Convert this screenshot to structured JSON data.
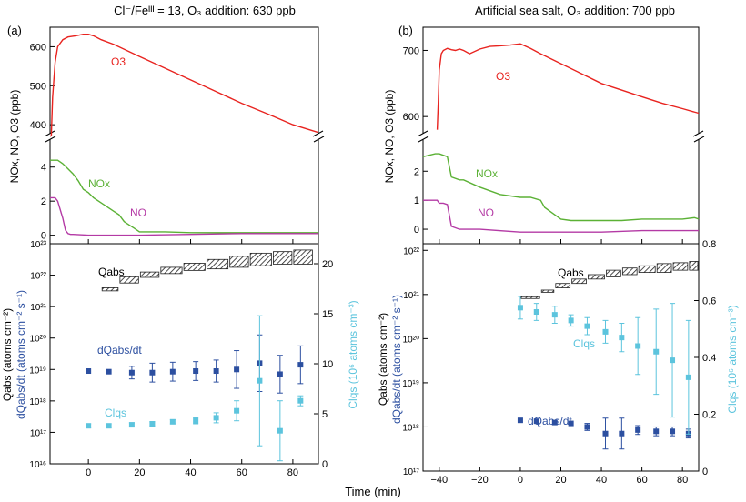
{
  "colors": {
    "o3": "#e8231f",
    "nox": "#5bb135",
    "no": "#b43aa5",
    "dq": "#2c4fa0",
    "cl": "#5cc4dd",
    "hatch": "#222222"
  },
  "x_axis_label": "Time (min)",
  "panels": [
    {
      "id": "a",
      "label": "(a)",
      "title": "Cl⁻/Feᴵᴵᴵ = 13, O₃ addition: 630 ppb",
      "ylabel_top": "NOx, NO, O3 (ppb)",
      "ylabel_left_1": "Qabs (atoms cm⁻²)",
      "ylabel_left_2": "dQabs/dt (atoms cm⁻² s⁻¹)",
      "ylabel_right": "Clqs (10⁶ atoms cm⁻³)",
      "xticks": [
        "0",
        "20",
        "40",
        "60",
        "80"
      ],
      "o3_yticks": [
        "400",
        "500",
        "600"
      ],
      "nox_yticks": [
        "0",
        "2",
        "4"
      ],
      "left_yticks": [
        "10¹⁶",
        "10¹⁷",
        "10¹⁸",
        "10¹⁹",
        "10²⁰",
        "10²¹",
        "10²²",
        "10²³"
      ],
      "right_yticks": [
        "0",
        "5",
        "10",
        "15",
        "20"
      ],
      "labels": {
        "o3": "O3",
        "nox": "NOx",
        "no": "NO",
        "qabs": "Qabs",
        "dq": "dQabs/dt",
        "cl": "Clqs"
      }
    },
    {
      "id": "b",
      "label": "(b)",
      "title": "Artificial sea salt, O₃ addition: 700 ppb",
      "ylabel_top": "NOx, NO, O3 (ppb)",
      "ylabel_left_1": "Qabs (atoms cm⁻²)",
      "ylabel_left_2": "dQabs/dt (atoms cm⁻² s⁻¹)",
      "ylabel_right": "Clqs (10⁶ atoms cm⁻³)",
      "xticks": [
        "−40",
        "−20",
        "0",
        "20",
        "40",
        "60",
        "80"
      ],
      "o3_yticks": [
        "600",
        "700"
      ],
      "nox_yticks": [
        "0",
        "1",
        "2"
      ],
      "left_yticks": [
        "10¹⁷",
        "10¹⁸",
        "10¹⁹",
        "10²⁰",
        "10²¹",
        "10²²"
      ],
      "right_yticks": [
        "0",
        "0.2",
        "0.4",
        "0.6",
        "0.8"
      ],
      "labels": {
        "o3": "O3",
        "nox": "NOx",
        "no": "NO",
        "qabs": "Qabs",
        "dq": "dQabs/dt",
        "cl": "Clqs"
      }
    }
  ],
  "chart_data": [
    {
      "type": "line",
      "panel": "a",
      "title": "Cl⁻/Feᴵᴵᴵ = 13, O₃ addition: 630 ppb",
      "xlabel": "Time (min)",
      "ylabel": "NOx, NO, O3 (ppb)",
      "xlim": [
        -15,
        90
      ],
      "o3_ylim": [
        370,
        650
      ],
      "nox_ylim": [
        -0.5,
        5.8
      ],
      "series": [
        {
          "name": "O3",
          "x": [
            -15,
            -14.5,
            -14,
            -13,
            -12,
            -10,
            -8,
            -5,
            -2,
            0,
            2,
            5,
            10,
            20,
            30,
            40,
            50,
            60,
            70,
            80,
            90
          ],
          "y": [
            370,
            372,
            470,
            560,
            600,
            618,
            625,
            628,
            632,
            632,
            628,
            618,
            606,
            575,
            545,
            515,
            485,
            455,
            428,
            400,
            380
          ]
        },
        {
          "name": "NOx",
          "x": [
            -15,
            -12,
            -11,
            -10,
            -8,
            -6,
            -4,
            -2,
            0,
            2,
            4,
            6,
            8,
            10,
            12,
            14,
            16,
            18,
            20,
            30,
            40,
            60,
            90
          ],
          "y": [
            4.4,
            4.4,
            4.3,
            4.2,
            3.9,
            3.6,
            3.2,
            2.7,
            2.5,
            2.2,
            2.0,
            1.8,
            1.6,
            1.4,
            1.2,
            0.8,
            0.6,
            0.4,
            0.2,
            0.2,
            0.15,
            0.15,
            0.15
          ]
        },
        {
          "name": "NO",
          "x": [
            -15,
            -13,
            -12,
            -10,
            -9,
            -8,
            -7,
            -6,
            0,
            10,
            20,
            40,
            60,
            90
          ],
          "y": [
            2.2,
            2.2,
            2.0,
            1.0,
            0.3,
            0.1,
            0.05,
            0.05,
            0.0,
            0.0,
            0.0,
            0.05,
            0.1,
            0.1
          ]
        }
      ]
    },
    {
      "type": "scatter",
      "panel": "a",
      "xlabel": "Time (min)",
      "ylabel": "Qabs (atoms cm⁻²), dQabs/dt (atoms cm⁻² s⁻¹)",
      "y2label": "Clqs (10⁶ atoms cm⁻³)",
      "xlim": [
        -15,
        90
      ],
      "ylim_log10": [
        16,
        23
      ],
      "y2lim": [
        0,
        22
      ],
      "series": [
        {
          "name": "dQabs/dt",
          "x": [
            0,
            8,
            17,
            25,
            33,
            42,
            50,
            58,
            67,
            75,
            83
          ],
          "log10_y": [
            18.95,
            18.93,
            18.9,
            18.9,
            18.93,
            18.95,
            18.95,
            19.0,
            19.2,
            18.85,
            19.15
          ],
          "err_log10": [
            0,
            0,
            0.2,
            0.3,
            0.3,
            0.3,
            0.35,
            0.6,
            0.9,
            0.6,
            0.6
          ]
        },
        {
          "name": "Clqs",
          "x": [
            0,
            8,
            17,
            25,
            33,
            42,
            50,
            58,
            67,
            75,
            83
          ],
          "y": [
            3.8,
            3.8,
            3.9,
            4.0,
            4.2,
            4.3,
            4.6,
            5.3,
            8.3,
            3.3,
            6.3
          ],
          "err": [
            0.2,
            0.2,
            0.2,
            0.2,
            0.2,
            0.3,
            0.5,
            1.0,
            6.5,
            3.0,
            0.5
          ]
        },
        {
          "name": "Qabs",
          "x": [
            [
              5,
              12
            ],
            [
              12,
              20
            ],
            [
              20,
              28
            ],
            [
              28,
              37
            ],
            [
              37,
              46
            ],
            [
              46,
              55
            ],
            [
              55,
              63
            ],
            [
              63,
              72
            ],
            [
              72,
              80
            ],
            [
              80,
              88
            ]
          ],
          "log10_low": [
            21.5,
            21.75,
            21.93,
            22.05,
            22.15,
            22.2,
            22.25,
            22.3,
            22.35,
            22.35
          ],
          "log10_high": [
            21.6,
            21.95,
            22.1,
            22.25,
            22.38,
            22.5,
            22.6,
            22.7,
            22.75,
            22.8
          ]
        }
      ]
    },
    {
      "type": "line",
      "panel": "b",
      "title": "Artificial sea salt, O₃ addition: 700 ppb",
      "xlabel": "Time (min)",
      "ylabel": "NOx, NO, O3 (ppb)",
      "xlim": [
        -48,
        88
      ],
      "o3_ylim": [
        570,
        735
      ],
      "nox_ylim": [
        -0.5,
        3.2
      ],
      "series": [
        {
          "name": "O3",
          "x": [
            -41,
            -40.5,
            -40,
            -39,
            -38,
            -36,
            -34,
            -32,
            -30,
            -28,
            -25,
            -20,
            -15,
            -10,
            -5,
            0,
            5,
            10,
            20,
            30,
            40,
            50,
            60,
            70,
            80,
            88
          ],
          "y": [
            580,
            620,
            670,
            695,
            700,
            703,
            701,
            700,
            702,
            700,
            695,
            702,
            706,
            707,
            708,
            710,
            703,
            695,
            680,
            665,
            650,
            640,
            630,
            620,
            612,
            605
          ]
        },
        {
          "name": "NOx",
          "x": [
            -48,
            -42,
            -41,
            -40,
            -36,
            -34,
            -30,
            -28,
            -20,
            -10,
            0,
            5,
            10,
            12,
            15,
            20,
            25,
            30,
            40,
            50,
            60,
            70,
            80,
            86,
            88
          ],
          "y": [
            2.5,
            2.6,
            2.6,
            2.6,
            2.5,
            1.8,
            1.7,
            1.7,
            1.45,
            1.2,
            1.1,
            1.1,
            1.0,
            0.75,
            0.6,
            0.35,
            0.3,
            0.3,
            0.3,
            0.3,
            0.35,
            0.35,
            0.35,
            0.4,
            0.35
          ]
        },
        {
          "name": "NO",
          "x": [
            -48,
            -42,
            -41,
            -40,
            -38,
            -36,
            -34,
            -30,
            -20,
            0,
            20,
            40,
            60,
            80,
            88
          ],
          "y": [
            1.0,
            1.0,
            1.0,
            0.9,
            0.9,
            0.85,
            0.1,
            0.0,
            0.0,
            -0.1,
            -0.1,
            -0.1,
            -0.05,
            -0.05,
            -0.05
          ]
        }
      ]
    },
    {
      "type": "scatter",
      "panel": "b",
      "xlabel": "Time (min)",
      "ylabel": "Qabs (atoms cm⁻²), dQabs/dt (atoms cm⁻² s⁻¹)",
      "y2label": "Clqs (10⁶ atoms cm⁻³)",
      "xlim": [
        -48,
        88
      ],
      "ylim_log10": [
        17,
        22.15
      ],
      "y2lim": [
        0,
        0.8
      ],
      "series": [
        {
          "name": "dQabs/dt",
          "x": [
            0,
            8,
            17,
            25,
            33,
            42,
            50,
            58,
            67,
            75,
            83
          ],
          "log10_y": [
            18.15,
            18.13,
            18.1,
            18.08,
            18.0,
            17.85,
            17.85,
            17.93,
            17.9,
            17.9,
            17.85
          ],
          "err_log10": [
            0,
            0,
            0,
            0,
            0.08,
            0.35,
            0.35,
            0.1,
            0.1,
            0.1,
            0.1
          ]
        },
        {
          "name": "Clqs",
          "x": [
            0,
            8,
            17,
            25,
            33,
            42,
            50,
            58,
            67,
            75,
            83
          ],
          "y": [
            0.575,
            0.56,
            0.55,
            0.53,
            0.51,
            0.49,
            0.47,
            0.44,
            0.42,
            0.39,
            0.33
          ],
          "err": [
            0.04,
            0.03,
            0.03,
            0.02,
            0.03,
            0.04,
            0.05,
            0.1,
            0.15,
            0.2,
            0.2
          ]
        },
        {
          "name": "Qabs",
          "x": [
            [
              0,
              10
            ],
            [
              10,
              17
            ],
            [
              17,
              25
            ],
            [
              25,
              33
            ],
            [
              33,
              42
            ],
            [
              42,
              50
            ],
            [
              50,
              58
            ],
            [
              58,
              67
            ],
            [
              67,
              75
            ],
            [
              75,
              83
            ],
            [
              83,
              88
            ]
          ],
          "log10_low": [
            20.95,
            21.05,
            21.15,
            21.25,
            21.35,
            21.4,
            21.45,
            21.5,
            21.5,
            21.55,
            21.55
          ],
          "log10_high": [
            20.95,
            21.1,
            21.25,
            21.35,
            21.45,
            21.55,
            21.6,
            21.65,
            21.7,
            21.72,
            21.75
          ]
        }
      ]
    }
  ]
}
